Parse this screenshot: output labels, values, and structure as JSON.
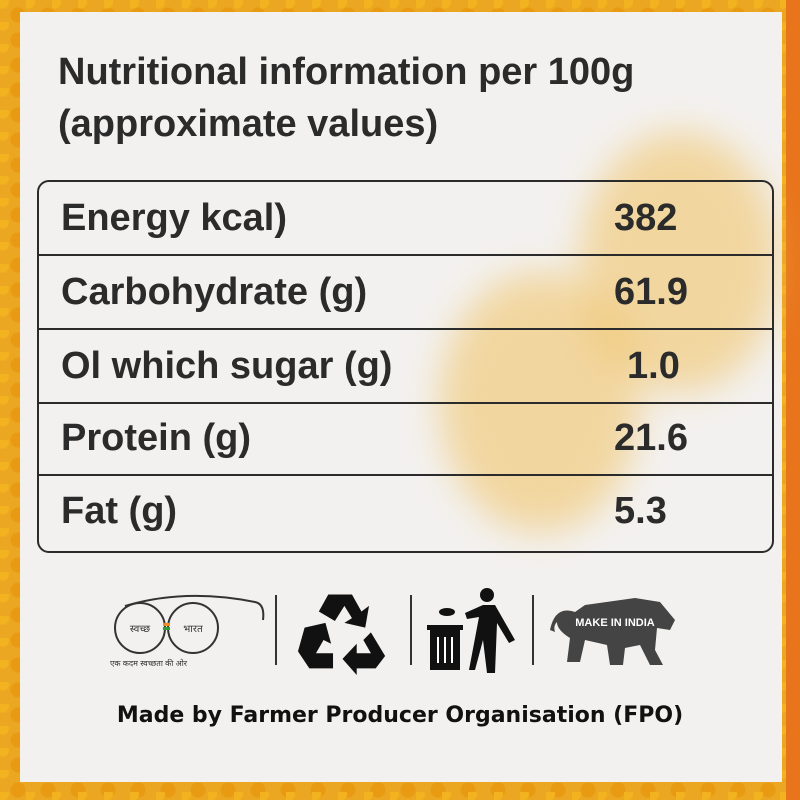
{
  "title_line1": "Nutritional information per 100g",
  "title_line2": "(approximate values)",
  "nutrition": [
    {
      "label": "Energy kcal)",
      "value": "382"
    },
    {
      "label": "Carbohydrate (g)",
      "value": "61.9"
    },
    {
      "label": "Ol which sugar (g)",
      "value": "1.0"
    },
    {
      "label": "Protein (g)",
      "value": "21.6"
    },
    {
      "label": "Fat (g)",
      "value": "5.3"
    }
  ],
  "logos": {
    "swachh_left": "स्वच्छ",
    "swachh_right": "भारत",
    "swachh_tagline": "एक कदम स्वच्छता की ओर",
    "recycle": "recycle-icon",
    "bin": "litter-bin-icon",
    "make_in_india": "MAKE IN INDIA"
  },
  "footer": "Made by Farmer Producer Organisation (FPO)",
  "colors": {
    "text": "#2b2b2b",
    "panel": "#f3f1ef",
    "border_accent": "#e8741c",
    "lentil": "#eba622"
  }
}
